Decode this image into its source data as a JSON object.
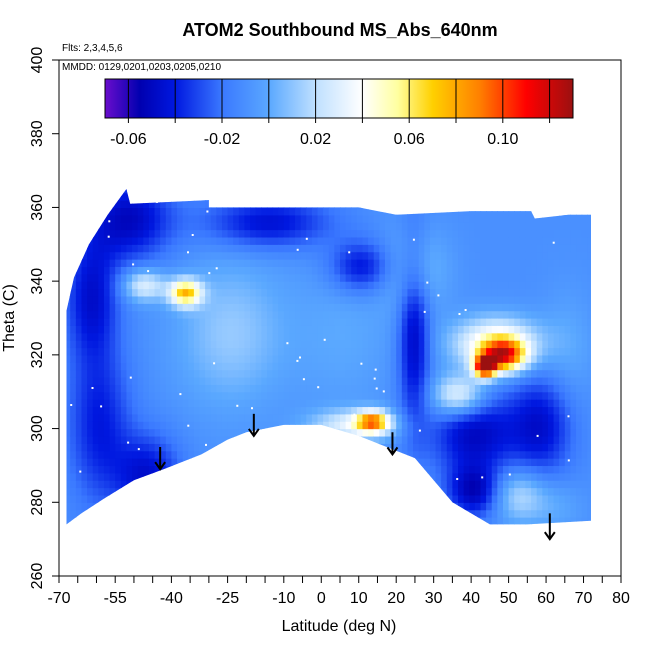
{
  "chart_data": {
    "type": "heatmap",
    "title": "ATOM2 Southbound MS_Abs_640nm",
    "flights_note": "Flts: 2,3,4,5,6",
    "dates_note": "MMDD: 0129,0201,0203,0205,0210",
    "xlabel": "Latitude (deg N)",
    "ylabel": "Theta (C)",
    "xlim": [
      -70,
      80
    ],
    "ylim": [
      260,
      400
    ],
    "x_ticks": [
      -70,
      -55,
      -40,
      -25,
      -10,
      0,
      10,
      20,
      30,
      40,
      50,
      60,
      70,
      80
    ],
    "x_tick_labels": [
      "-70",
      "-55",
      "-40",
      "-25",
      "-10",
      "0",
      "10",
      "20",
      "30",
      "40",
      "50",
      "60",
      "70",
      "80"
    ],
    "x_minor_ticks": [
      -65,
      -60,
      -50,
      -45,
      -35,
      -30,
      -20,
      -15,
      -5,
      5,
      15,
      25,
      35,
      45,
      55,
      65,
      75
    ],
    "y_ticks": [
      260,
      280,
      300,
      320,
      340,
      360,
      380,
      400
    ],
    "y_tick_labels": [
      "260",
      "280",
      "300",
      "320",
      "340",
      "360",
      "380",
      "400"
    ],
    "colorbar": {
      "min": -0.07,
      "max": 0.13,
      "ticks": [
        -0.06,
        -0.02,
        0.02,
        0.06,
        0.1
      ],
      "tick_labels": [
        "-0.06",
        "-0.02",
        "0.02",
        "0.06",
        "0.10"
      ],
      "stops": [
        {
          "v": -0.07,
          "c": "#6a0dcc"
        },
        {
          "v": -0.055,
          "c": "#0000b0"
        },
        {
          "v": -0.04,
          "c": "#0018e0"
        },
        {
          "v": -0.02,
          "c": "#3a78ff"
        },
        {
          "v": 0.0,
          "c": "#5aa8ff"
        },
        {
          "v": 0.02,
          "c": "#bfe0ff"
        },
        {
          "v": 0.04,
          "c": "#ffffff"
        },
        {
          "v": 0.055,
          "c": "#ffffa0"
        },
        {
          "v": 0.07,
          "c": "#ffd000"
        },
        {
          "v": 0.09,
          "c": "#ff8000"
        },
        {
          "v": 0.11,
          "c": "#ff0000"
        },
        {
          "v": 0.13,
          "c": "#9b1010"
        }
      ]
    },
    "field": {
      "base_value": -0.01,
      "blobs": [
        {
          "x": -52,
          "y": 356,
          "v": -0.05,
          "sx": 8,
          "sy": 8
        },
        {
          "x": -62,
          "y": 335,
          "v": -0.045,
          "sx": 5,
          "sy": 12
        },
        {
          "x": -60,
          "y": 300,
          "v": -0.04,
          "sx": 6,
          "sy": 15
        },
        {
          "x": -47,
          "y": 286,
          "v": -0.045,
          "sx": 6,
          "sy": 8
        },
        {
          "x": -37,
          "y": 336,
          "v": 0.07,
          "sx": 3,
          "sy": 2.5
        },
        {
          "x": -48,
          "y": 338,
          "v": 0.03,
          "sx": 4,
          "sy": 3
        },
        {
          "x": -25,
          "y": 325,
          "v": 0.012,
          "sx": 10,
          "sy": 14
        },
        {
          "x": 5,
          "y": 325,
          "v": 0.0,
          "sx": 10,
          "sy": 15
        },
        {
          "x": 8,
          "y": 300,
          "v": 0.03,
          "sx": 8,
          "sy": 3
        },
        {
          "x": 13,
          "y": 301,
          "v": 0.07,
          "sx": 3,
          "sy": 2
        },
        {
          "x": 10,
          "y": 343,
          "v": -0.045,
          "sx": 6,
          "sy": 5
        },
        {
          "x": 24,
          "y": 342,
          "v": 0.012,
          "sx": 6,
          "sy": 8
        },
        {
          "x": 24,
          "y": 325,
          "v": -0.05,
          "sx": 3,
          "sy": 18
        },
        {
          "x": 46,
          "y": 322,
          "v": 0.05,
          "sx": 8,
          "sy": 5
        },
        {
          "x": 48,
          "y": 319,
          "v": 0.08,
          "sx": 4,
          "sy": 3
        },
        {
          "x": 43,
          "y": 316,
          "v": 0.12,
          "sx": 2,
          "sy": 2
        },
        {
          "x": 36,
          "y": 308,
          "v": 0.04,
          "sx": 5,
          "sy": 4
        },
        {
          "x": 40,
          "y": 298,
          "v": -0.05,
          "sx": 8,
          "sy": 8
        },
        {
          "x": 58,
          "y": 300,
          "v": -0.045,
          "sx": 6,
          "sy": 10
        },
        {
          "x": 65,
          "y": 320,
          "v": 0.0,
          "sx": 5,
          "sy": 12
        },
        {
          "x": 52,
          "y": 281,
          "v": 0.02,
          "sx": 5,
          "sy": 5
        },
        {
          "x": 40,
          "y": 282,
          "v": -0.05,
          "sx": 5,
          "sy": 5
        },
        {
          "x": 62,
          "y": 278,
          "v": 0.0,
          "sx": 5,
          "sy": 5
        },
        {
          "x": -15,
          "y": 355,
          "v": -0.045,
          "sx": 12,
          "sy": 5
        }
      ],
      "data_outline": [
        [
          -52,
          365
        ],
        [
          -51,
          361
        ],
        [
          -30,
          362
        ],
        [
          -30,
          360
        ],
        [
          10,
          360
        ],
        [
          20,
          358
        ],
        [
          40,
          359
        ],
        [
          56,
          359
        ],
        [
          57,
          357
        ],
        [
          66,
          358
        ],
        [
          72,
          358
        ],
        [
          72,
          275
        ],
        [
          55,
          274
        ],
        [
          45,
          274
        ],
        [
          35,
          280
        ],
        [
          25,
          292
        ],
        [
          20,
          294
        ],
        [
          10,
          298
        ],
        [
          0,
          301
        ],
        [
          -10,
          301
        ],
        [
          -20,
          299
        ],
        [
          -25,
          297
        ],
        [
          -32,
          293
        ],
        [
          -42,
          289
        ],
        [
          -50,
          286
        ],
        [
          -58,
          281
        ],
        [
          -64,
          277
        ],
        [
          -68,
          274
        ],
        [
          -68,
          332
        ],
        [
          -66,
          341
        ],
        [
          -62,
          350
        ],
        [
          -57,
          358
        ]
      ]
    },
    "arrows": [
      {
        "x": -43,
        "y_start": 295,
        "y_end": 289
      },
      {
        "x": -18,
        "y_start": 304,
        "y_end": 298
      },
      {
        "x": 19,
        "y_start": 299,
        "y_end": 293
      },
      {
        "x": 61,
        "y_start": 277,
        "y_end": 270
      }
    ]
  }
}
